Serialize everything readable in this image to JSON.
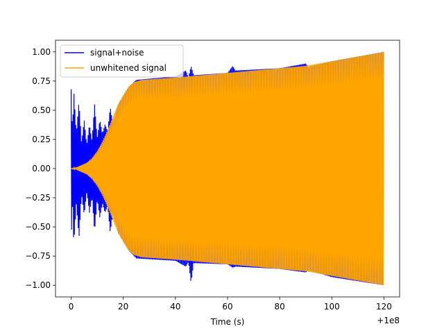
{
  "chart_data": {
    "type": "line",
    "title": "",
    "xlabel": "Time (s)",
    "ylabel": "",
    "x_offset_label": "+1e8",
    "xlim": [
      -6,
      126
    ],
    "ylim": [
      -1.1,
      1.1
    ],
    "x_ticks": [
      0,
      20,
      40,
      60,
      80,
      100,
      120
    ],
    "x_tick_labels": [
      "0",
      "20",
      "40",
      "60",
      "80",
      "100",
      "120"
    ],
    "y_ticks": [
      -1.0,
      -0.75,
      -0.5,
      -0.25,
      0.0,
      0.25,
      0.5,
      0.75,
      1.0
    ],
    "y_tick_labels": [
      "−1.00",
      "−0.75",
      "−0.50",
      "−0.25",
      "0.00",
      "0.25",
      "0.50",
      "0.75",
      "1.00"
    ],
    "legend_position": "top-left",
    "grid": false,
    "series": [
      {
        "name": "signal+noise",
        "color": "#0000ff",
        "envelope_upper": [
          [
            0,
            0.68
          ],
          [
            0.5,
            0.3
          ],
          [
            1,
            0.67
          ],
          [
            2,
            0.3
          ],
          [
            3,
            0.58
          ],
          [
            4,
            0.22
          ],
          [
            5,
            0.42
          ],
          [
            6,
            0.2
          ],
          [
            7,
            0.38
          ],
          [
            8,
            0.24
          ],
          [
            9,
            0.55
          ],
          [
            10,
            0.26
          ],
          [
            11,
            0.42
          ],
          [
            12,
            0.3
          ],
          [
            13,
            0.38
          ],
          [
            14,
            0.32
          ],
          [
            15,
            0.53
          ],
          [
            16,
            0.38
          ],
          [
            17,
            0.45
          ],
          [
            18,
            0.55
          ],
          [
            20,
            0.62
          ],
          [
            22,
            0.7
          ],
          [
            25,
            0.76
          ],
          [
            40,
            0.79
          ],
          [
            44,
            0.84
          ],
          [
            45,
            0.78
          ],
          [
            46,
            0.88
          ],
          [
            47,
            0.8
          ],
          [
            60,
            0.82
          ],
          [
            62,
            0.88
          ],
          [
            63,
            0.84
          ],
          [
            80,
            0.86
          ],
          [
            90,
            0.9
          ],
          [
            91,
            0.87
          ],
          [
            100,
            0.92
          ],
          [
            120,
            1.0
          ]
        ],
        "envelope_lower": [
          [
            0,
            -0.65
          ],
          [
            0.5,
            -0.3
          ],
          [
            1,
            -0.66
          ],
          [
            2,
            -0.3
          ],
          [
            3,
            -0.6
          ],
          [
            4,
            -0.22
          ],
          [
            5,
            -0.4
          ],
          [
            6,
            -0.2
          ],
          [
            7,
            -0.38
          ],
          [
            8,
            -0.24
          ],
          [
            9,
            -0.55
          ],
          [
            10,
            -0.26
          ],
          [
            11,
            -0.42
          ],
          [
            12,
            -0.3
          ],
          [
            13,
            -0.38
          ],
          [
            14,
            -0.32
          ],
          [
            15,
            -0.55
          ],
          [
            16,
            -0.38
          ],
          [
            17,
            -0.45
          ],
          [
            18,
            -0.55
          ],
          [
            20,
            -0.62
          ],
          [
            22,
            -0.7
          ],
          [
            25,
            -0.77
          ],
          [
            40,
            -0.79
          ],
          [
            44,
            -0.84
          ],
          [
            45,
            -0.8
          ],
          [
            46,
            -0.98
          ],
          [
            47,
            -0.81
          ],
          [
            60,
            -0.82
          ],
          [
            62,
            -0.85
          ],
          [
            63,
            -0.84
          ],
          [
            80,
            -0.86
          ],
          [
            90,
            -0.89
          ],
          [
            91,
            -0.87
          ],
          [
            100,
            -0.93
          ],
          [
            120,
            -1.0
          ]
        ]
      },
      {
        "name": "unwhitened signal",
        "color": "#ffa500",
        "envelope_upper": [
          [
            0,
            0.0
          ],
          [
            2,
            0.01
          ],
          [
            4,
            0.03
          ],
          [
            6,
            0.05
          ],
          [
            8,
            0.09
          ],
          [
            10,
            0.15
          ],
          [
            12,
            0.23
          ],
          [
            14,
            0.33
          ],
          [
            16,
            0.44
          ],
          [
            18,
            0.55
          ],
          [
            20,
            0.63
          ],
          [
            22,
            0.7
          ],
          [
            24,
            0.74
          ],
          [
            27,
            0.76
          ],
          [
            40,
            0.78
          ],
          [
            60,
            0.82
          ],
          [
            80,
            0.86
          ],
          [
            90,
            0.88
          ],
          [
            100,
            0.92
          ],
          [
            110,
            0.96
          ],
          [
            120,
            1.0
          ]
        ],
        "envelope_lower": [
          [
            0,
            0.0
          ],
          [
            2,
            -0.01
          ],
          [
            4,
            -0.03
          ],
          [
            6,
            -0.05
          ],
          [
            8,
            -0.09
          ],
          [
            10,
            -0.15
          ],
          [
            12,
            -0.23
          ],
          [
            14,
            -0.33
          ],
          [
            16,
            -0.44
          ],
          [
            18,
            -0.55
          ],
          [
            20,
            -0.63
          ],
          [
            22,
            -0.7
          ],
          [
            24,
            -0.74
          ],
          [
            27,
            -0.76
          ],
          [
            40,
            -0.78
          ],
          [
            60,
            -0.82
          ],
          [
            80,
            -0.86
          ],
          [
            90,
            -0.88
          ],
          [
            100,
            -0.92
          ],
          [
            110,
            -0.96
          ],
          [
            120,
            -1.0
          ]
        ]
      }
    ]
  }
}
